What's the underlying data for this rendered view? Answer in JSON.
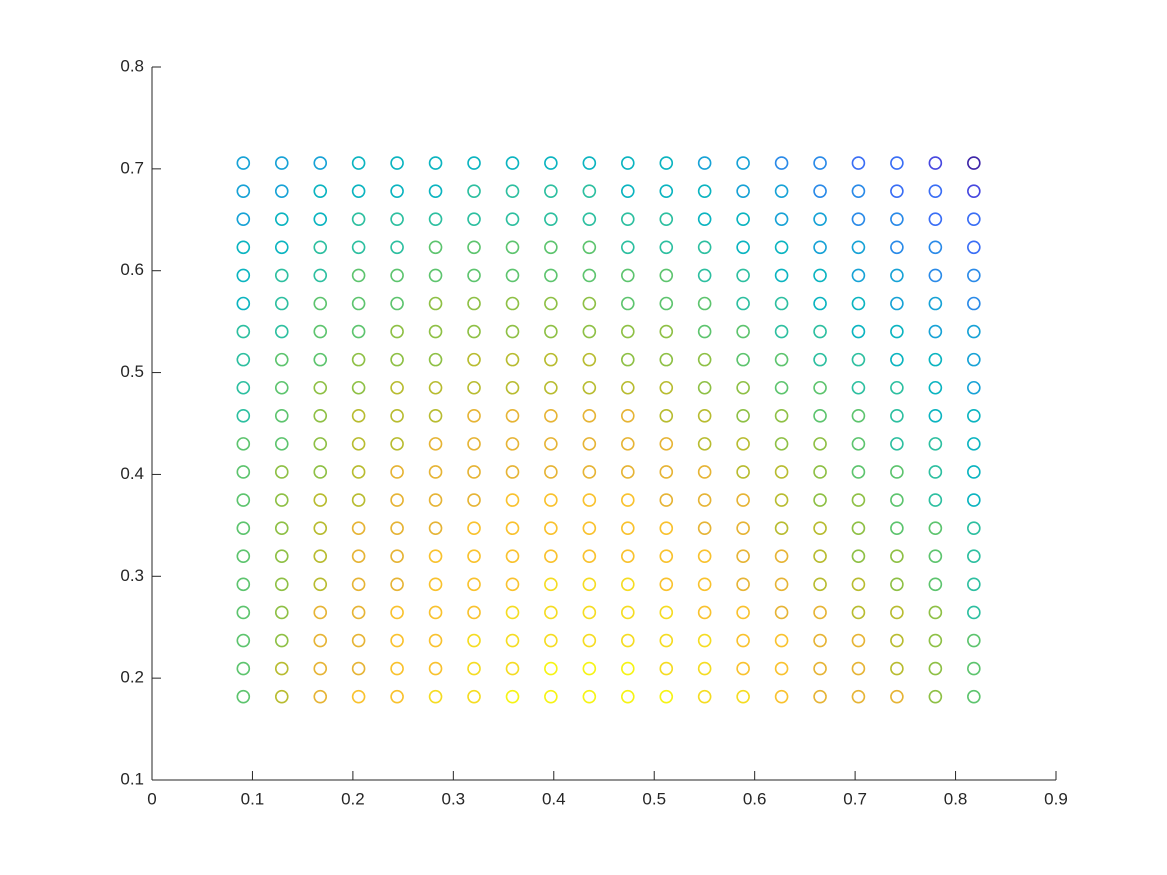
{
  "chart_data": {
    "type": "scatter",
    "x": [
      0.0909,
      0.1292,
      0.1675,
      0.2057,
      0.244,
      0.2823,
      0.3206,
      0.3589,
      0.3971,
      0.4354,
      0.4737,
      0.512,
      0.5502,
      0.5885,
      0.6268,
      0.6651,
      0.7033,
      0.7416,
      0.7799,
      0.8182
    ],
    "y": [
      0.1818,
      0.2094,
      0.2369,
      0.2645,
      0.2921,
      0.3197,
      0.3472,
      0.3748,
      0.4024,
      0.43,
      0.4575,
      0.4851,
      0.5127,
      0.5403,
      0.5678,
      0.5954,
      0.623,
      0.6506,
      0.6781,
      0.7057
    ],
    "colors": [
      [
        "#5dc46e",
        "#b8bc30",
        "#e6b435",
        "#f9c22e",
        "#f9c22e",
        "#f5dc22",
        "#f5dc22",
        "#f6f414",
        "#f6f414",
        "#f6f414",
        "#f6f414",
        "#f6f414",
        "#f5dc22",
        "#f5dc22",
        "#f9c22e",
        "#e6b435",
        "#e6b435",
        "#e6b435",
        "#8ec045",
        "#5dc46e"
      ],
      [
        "#5dc46e",
        "#b8bc30",
        "#e6b435",
        "#e6b435",
        "#f9c22e",
        "#f9c22e",
        "#f5dc22",
        "#f5dc22",
        "#f6f414",
        "#f6f414",
        "#f6f414",
        "#f5dc22",
        "#f5dc22",
        "#f9c22e",
        "#f9c22e",
        "#e6b435",
        "#e6b435",
        "#b8bc30",
        "#8ec045",
        "#5dc46e"
      ],
      [
        "#5dc46e",
        "#8ec045",
        "#e6b435",
        "#e6b435",
        "#f9c22e",
        "#f9c22e",
        "#f5dc22",
        "#f5dc22",
        "#f5dc22",
        "#f5dc22",
        "#f5dc22",
        "#f5dc22",
        "#f5dc22",
        "#f9c22e",
        "#f9c22e",
        "#e6b435",
        "#e6b435",
        "#b8bc30",
        "#8ec045",
        "#5dc46e"
      ],
      [
        "#5dc46e",
        "#8ec045",
        "#e6b435",
        "#e6b435",
        "#f9c22e",
        "#f9c22e",
        "#f9c22e",
        "#f5dc22",
        "#f5dc22",
        "#f5dc22",
        "#f5dc22",
        "#f5dc22",
        "#f9c22e",
        "#f9c22e",
        "#e6b435",
        "#e6b435",
        "#b8bc30",
        "#b8bc30",
        "#8ec045",
        "#2dbfa0"
      ],
      [
        "#5dc46e",
        "#8ec045",
        "#b8bc30",
        "#e6b435",
        "#e6b435",
        "#f9c22e",
        "#f9c22e",
        "#f9c22e",
        "#f5dc22",
        "#f5dc22",
        "#f5dc22",
        "#f9c22e",
        "#f9c22e",
        "#e6b435",
        "#e6b435",
        "#b8bc30",
        "#b8bc30",
        "#8ec045",
        "#5dc46e",
        "#2dbfa0"
      ],
      [
        "#5dc46e",
        "#8ec045",
        "#b8bc30",
        "#e6b435",
        "#e6b435",
        "#f9c22e",
        "#f9c22e",
        "#f9c22e",
        "#f9c22e",
        "#f9c22e",
        "#f9c22e",
        "#f9c22e",
        "#f9c22e",
        "#e6b435",
        "#e6b435",
        "#b8bc30",
        "#8ec045",
        "#8ec045",
        "#5dc46e",
        "#2dbfa0"
      ],
      [
        "#5dc46e",
        "#8ec045",
        "#b8bc30",
        "#e6b435",
        "#e6b435",
        "#e6b435",
        "#f9c22e",
        "#f9c22e",
        "#f9c22e",
        "#f9c22e",
        "#f9c22e",
        "#f9c22e",
        "#e6b435",
        "#e6b435",
        "#b8bc30",
        "#b8bc30",
        "#8ec045",
        "#5dc46e",
        "#5dc46e",
        "#2dbfa0"
      ],
      [
        "#5dc46e",
        "#8ec045",
        "#b8bc30",
        "#b8bc30",
        "#e6b435",
        "#e6b435",
        "#e6b435",
        "#f9c22e",
        "#f9c22e",
        "#f9c22e",
        "#f9c22e",
        "#e6b435",
        "#e6b435",
        "#e6b435",
        "#b8bc30",
        "#8ec045",
        "#8ec045",
        "#5dc46e",
        "#2dbfa0",
        "#0bb4c0"
      ],
      [
        "#5dc46e",
        "#8ec045",
        "#8ec045",
        "#b8bc30",
        "#e6b435",
        "#e6b435",
        "#e6b435",
        "#e6b435",
        "#e6b435",
        "#e6b435",
        "#e6b435",
        "#e6b435",
        "#e6b435",
        "#b8bc30",
        "#b8bc30",
        "#8ec045",
        "#5dc46e",
        "#5dc46e",
        "#2dbfa0",
        "#0bb4c0"
      ],
      [
        "#5dc46e",
        "#5dc46e",
        "#8ec045",
        "#b8bc30",
        "#b8bc30",
        "#e6b435",
        "#e6b435",
        "#e6b435",
        "#e6b435",
        "#e6b435",
        "#e6b435",
        "#e6b435",
        "#b8bc30",
        "#b8bc30",
        "#8ec045",
        "#8ec045",
        "#5dc46e",
        "#2dbfa0",
        "#2dbfa0",
        "#0bb4c0"
      ],
      [
        "#2dbfa0",
        "#5dc46e",
        "#8ec045",
        "#b8bc30",
        "#b8bc30",
        "#b8bc30",
        "#e6b435",
        "#e6b435",
        "#e6b435",
        "#e6b435",
        "#e6b435",
        "#b8bc30",
        "#b8bc30",
        "#8ec045",
        "#8ec045",
        "#5dc46e",
        "#5dc46e",
        "#2dbfa0",
        "#0bb4c0",
        "#0bb4c0"
      ],
      [
        "#2dbfa0",
        "#5dc46e",
        "#8ec045",
        "#8ec045",
        "#b8bc30",
        "#b8bc30",
        "#b8bc30",
        "#b8bc30",
        "#b8bc30",
        "#b8bc30",
        "#b8bc30",
        "#b8bc30",
        "#8ec045",
        "#8ec045",
        "#5dc46e",
        "#5dc46e",
        "#2dbfa0",
        "#2dbfa0",
        "#0bb4c0",
        "#17a2d6"
      ],
      [
        "#2dbfa0",
        "#5dc46e",
        "#5dc46e",
        "#8ec045",
        "#8ec045",
        "#8ec045",
        "#b8bc30",
        "#b8bc30",
        "#b8bc30",
        "#b8bc30",
        "#8ec045",
        "#8ec045",
        "#8ec045",
        "#5dc46e",
        "#5dc46e",
        "#2dbfa0",
        "#2dbfa0",
        "#0bb4c0",
        "#0bb4c0",
        "#17a2d6"
      ],
      [
        "#2dbfa0",
        "#2dbfa0",
        "#5dc46e",
        "#5dc46e",
        "#8ec045",
        "#8ec045",
        "#8ec045",
        "#8ec045",
        "#8ec045",
        "#8ec045",
        "#8ec045",
        "#8ec045",
        "#5dc46e",
        "#5dc46e",
        "#2dbfa0",
        "#2dbfa0",
        "#0bb4c0",
        "#0bb4c0",
        "#17a2d6",
        "#17a2d6"
      ],
      [
        "#0bb4c0",
        "#2dbfa0",
        "#5dc46e",
        "#5dc46e",
        "#5dc46e",
        "#8ec045",
        "#8ec045",
        "#8ec045",
        "#8ec045",
        "#8ec045",
        "#5dc46e",
        "#5dc46e",
        "#5dc46e",
        "#2dbfa0",
        "#2dbfa0",
        "#0bb4c0",
        "#0bb4c0",
        "#17a2d6",
        "#17a2d6",
        "#2a8ae8"
      ],
      [
        "#0bb4c0",
        "#2dbfa0",
        "#2dbfa0",
        "#5dc46e",
        "#5dc46e",
        "#5dc46e",
        "#5dc46e",
        "#5dc46e",
        "#5dc46e",
        "#5dc46e",
        "#5dc46e",
        "#5dc46e",
        "#2dbfa0",
        "#2dbfa0",
        "#0bb4c0",
        "#0bb4c0",
        "#17a2d6",
        "#17a2d6",
        "#2a8ae8",
        "#2a8ae8"
      ],
      [
        "#0bb4c0",
        "#0bb4c0",
        "#2dbfa0",
        "#2dbfa0",
        "#2dbfa0",
        "#5dc46e",
        "#5dc46e",
        "#5dc46e",
        "#5dc46e",
        "#5dc46e",
        "#2dbfa0",
        "#2dbfa0",
        "#2dbfa0",
        "#0bb4c0",
        "#0bb4c0",
        "#17a2d6",
        "#17a2d6",
        "#2a8ae8",
        "#2a8ae8",
        "#3a6ef5"
      ],
      [
        "#17a2d6",
        "#0bb4c0",
        "#0bb4c0",
        "#2dbfa0",
        "#2dbfa0",
        "#2dbfa0",
        "#2dbfa0",
        "#2dbfa0",
        "#2dbfa0",
        "#2dbfa0",
        "#2dbfa0",
        "#2dbfa0",
        "#0bb4c0",
        "#0bb4c0",
        "#17a2d6",
        "#17a2d6",
        "#2a8ae8",
        "#2a8ae8",
        "#3a6ef5",
        "#3a6ef5"
      ],
      [
        "#17a2d6",
        "#17a2d6",
        "#0bb4c0",
        "#0bb4c0",
        "#0bb4c0",
        "#0bb4c0",
        "#2dbfa0",
        "#2dbfa0",
        "#2dbfa0",
        "#2dbfa0",
        "#0bb4c0",
        "#0bb4c0",
        "#0bb4c0",
        "#17a2d6",
        "#17a2d6",
        "#2a8ae8",
        "#2a8ae8",
        "#3a6ef5",
        "#3a6ef5",
        "#4748e0"
      ],
      [
        "#17a2d6",
        "#17a2d6",
        "#17a2d6",
        "#0bb4c0",
        "#0bb4c0",
        "#0bb4c0",
        "#0bb4c0",
        "#0bb4c0",
        "#0bb4c0",
        "#0bb4c0",
        "#0bb4c0",
        "#0bb4c0",
        "#17a2d6",
        "#17a2d6",
        "#2a8ae8",
        "#2a8ae8",
        "#3a6ef5",
        "#3a6ef5",
        "#4748e0",
        "#3e26a8"
      ]
    ],
    "xlim": [
      0,
      0.9
    ],
    "xticks": [
      0,
      0.1,
      0.2,
      0.3,
      0.4,
      0.5,
      0.6,
      0.7,
      0.8,
      0.9
    ],
    "ylim": [
      0.1,
      0.8
    ],
    "yticks": [
      0.1,
      0.2,
      0.3,
      0.4,
      0.5,
      0.6,
      0.7,
      0.8
    ]
  }
}
